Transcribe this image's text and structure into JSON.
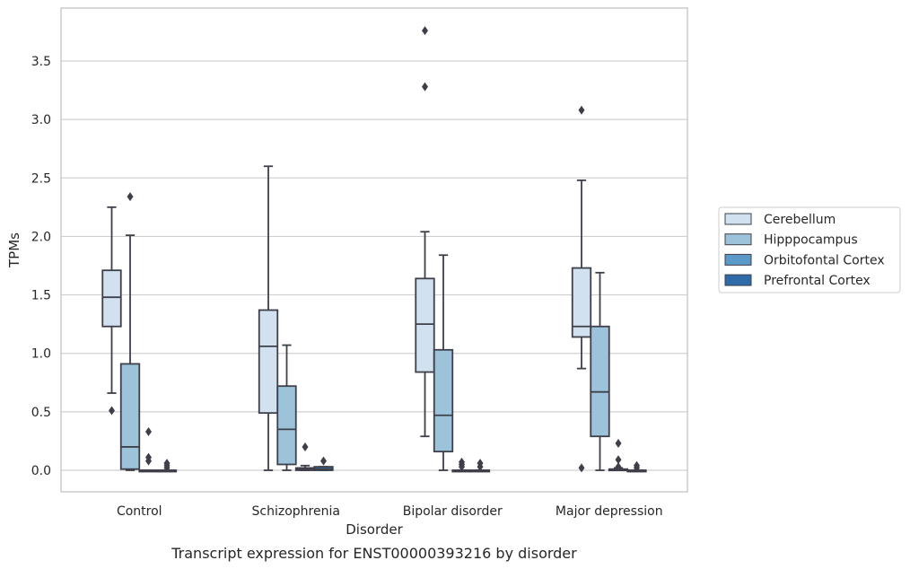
{
  "chart_data": {
    "type": "box",
    "title": "",
    "caption": "Transcript expression for ENST00000393216 by disorder",
    "xlabel": "Disorder",
    "ylabel": "TPMs",
    "ylim": [
      -0.18,
      3.9
    ],
    "yticks": [
      "0.0",
      "0.5",
      "1.0",
      "1.5",
      "2.0",
      "2.5",
      "3.0",
      "3.5"
    ],
    "ytick_values": [
      0,
      0.5,
      1.0,
      1.5,
      2.0,
      2.5,
      3.0,
      3.5
    ],
    "grid": true,
    "legend_position": "right",
    "categories": [
      "Control",
      "Schizophrenia",
      "Bipolar disorder",
      "Major depression"
    ],
    "series": [
      {
        "name": "Cerebellum",
        "color": "#d2e1f0",
        "boxes": [
          {
            "whislo": 0.66,
            "q1": 1.23,
            "med": 1.48,
            "q3": 1.71,
            "whishi": 2.25,
            "fliers": [
              0.51
            ]
          },
          {
            "whislo": 0.0,
            "q1": 0.49,
            "med": 1.06,
            "q3": 1.37,
            "whishi": 2.6,
            "fliers": []
          },
          {
            "whislo": 0.29,
            "q1": 0.84,
            "med": 1.25,
            "q3": 1.64,
            "whishi": 2.04,
            "fliers": [
              3.76,
              3.28
            ]
          },
          {
            "whislo": 0.87,
            "q1": 1.14,
            "med": 1.23,
            "q3": 1.73,
            "whishi": 2.48,
            "fliers": [
              3.08,
              0.02
            ]
          }
        ]
      },
      {
        "name": "Hipppocampus",
        "color": "#9dc3db",
        "boxes": [
          {
            "whislo": 0.0,
            "q1": 0.01,
            "med": 0.2,
            "q3": 0.91,
            "whishi": 2.01,
            "fliers": [
              2.34
            ]
          },
          {
            "whislo": 0.0,
            "q1": 0.05,
            "med": 0.35,
            "q3": 0.72,
            "whishi": 1.07,
            "fliers": []
          },
          {
            "whislo": 0.0,
            "q1": 0.16,
            "med": 0.47,
            "q3": 1.03,
            "whishi": 1.84,
            "fliers": []
          },
          {
            "whislo": 0.0,
            "q1": 0.29,
            "med": 0.67,
            "q3": 1.23,
            "whishi": 1.69,
            "fliers": []
          }
        ]
      },
      {
        "name": "Orbitofontal Cortex",
        "color": "#5a99c8",
        "boxes": [
          {
            "whislo": 0.0,
            "q1": 0.0,
            "med": 0.0,
            "q3": 0.0,
            "whishi": 0.0,
            "fliers": [
              0.33,
              0.11,
              0.08
            ]
          },
          {
            "whislo": 0.0,
            "q1": 0.0,
            "med": 0.01,
            "q3": 0.02,
            "whishi": 0.04,
            "fliers": [
              0.2
            ]
          },
          {
            "whislo": 0.0,
            "q1": 0.0,
            "med": 0.0,
            "q3": 0.0,
            "whishi": 0.0,
            "fliers": [
              0.07,
              0.05,
              0.03
            ]
          },
          {
            "whislo": 0.0,
            "q1": 0.0,
            "med": 0.0,
            "q3": 0.01,
            "whishi": 0.02,
            "fliers": [
              0.23,
              0.09,
              0.03
            ]
          }
        ]
      },
      {
        "name": "Prefrontal Cortex",
        "color": "#2f6ba8",
        "boxes": [
          {
            "whislo": 0.0,
            "q1": 0.0,
            "med": 0.0,
            "q3": 0.0,
            "whishi": 0.0,
            "fliers": [
              0.06,
              0.04,
              0.02
            ]
          },
          {
            "whislo": 0.0,
            "q1": 0.0,
            "med": 0.01,
            "q3": 0.03,
            "whishi": 0.03,
            "fliers": [
              0.08
            ]
          },
          {
            "whislo": 0.0,
            "q1": 0.0,
            "med": 0.0,
            "q3": 0.0,
            "whishi": 0.0,
            "fliers": [
              0.06,
              0.03
            ]
          },
          {
            "whislo": 0.0,
            "q1": 0.0,
            "med": 0.0,
            "q3": 0.0,
            "whishi": 0.0,
            "fliers": [
              0.04,
              0.02
            ]
          }
        ]
      }
    ]
  }
}
